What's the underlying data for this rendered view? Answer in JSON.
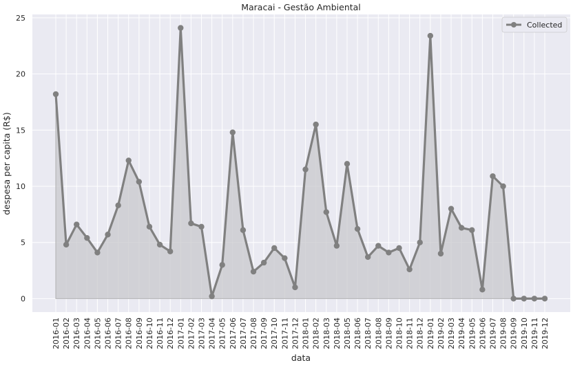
{
  "chart_data": {
    "type": "line",
    "title": "Maracai - Gestão Ambiental",
    "xlabel": "data",
    "ylabel": "despesa per capita (R$)",
    "ylim": [
      -1.2,
      25.3
    ],
    "yticks": [
      0,
      5,
      10,
      15,
      20,
      25
    ],
    "grid": true,
    "legend_position": "top-right",
    "fill_area": true,
    "colors": {
      "background": "#eaeaf2",
      "grid": "#ffffff",
      "line": "#808080",
      "fill": "#c8c8cc",
      "legend_bg": "#eaeaf2"
    },
    "categories": [
      "2016-01",
      "2016-02",
      "2016-03",
      "2016-04",
      "2016-05",
      "2016-06",
      "2016-07",
      "2016-08",
      "2016-09",
      "2016-10",
      "2016-11",
      "2016-12",
      "2017-01",
      "2017-02",
      "2017-03",
      "2017-04",
      "2017-05",
      "2017-06",
      "2017-07",
      "2017-08",
      "2017-09",
      "2017-10",
      "2017-11",
      "2017-12",
      "2018-01",
      "2018-02",
      "2018-03",
      "2018-04",
      "2018-05",
      "2018-06",
      "2018-07",
      "2018-08",
      "2018-09",
      "2018-10",
      "2018-11",
      "2018-12",
      "2019-01",
      "2019-02",
      "2019-03",
      "2019-04",
      "2019-05",
      "2019-06",
      "2019-07",
      "2019-08",
      "2019-09",
      "2019-10",
      "2019-11",
      "2019-12"
    ],
    "series": [
      {
        "name": "Collected",
        "values": [
          18.2,
          4.8,
          6.6,
          5.4,
          4.1,
          5.7,
          8.3,
          12.3,
          10.4,
          6.4,
          4.8,
          4.2,
          24.1,
          6.7,
          6.4,
          0.2,
          3.0,
          14.8,
          6.1,
          2.4,
          3.2,
          4.5,
          3.6,
          1.0,
          11.5,
          15.5,
          7.7,
          4.7,
          12.0,
          6.2,
          3.7,
          4.7,
          4.1,
          4.5,
          2.6,
          5.0,
          23.4,
          4.0,
          8.0,
          6.3,
          6.1,
          0.8,
          10.9,
          10.0,
          0.0,
          0.0,
          0.0,
          0.0
        ]
      }
    ]
  }
}
